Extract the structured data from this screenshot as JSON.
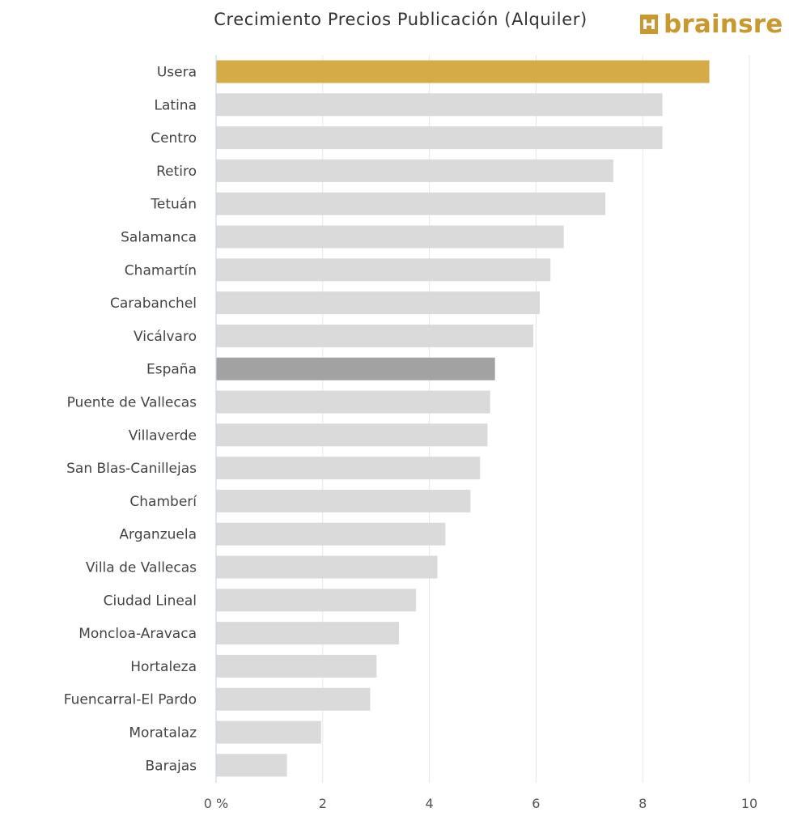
{
  "header": {
    "title": "Crecimiento Precios Publicación (Alquiler)",
    "logo_text": "brainsre",
    "logo_icon": "brainsre-logo-icon"
  },
  "colors": {
    "highlight": "#d4ab46",
    "reference": "#a2a2a2",
    "default": "#dadada",
    "grid": "#e6e6e6",
    "axis": "#c8d6e6",
    "brand": "#c9982e"
  },
  "chart_data": {
    "type": "bar",
    "orientation": "horizontal",
    "title": "Crecimiento Precios Publicación (Alquiler)",
    "xlabel": "",
    "ylabel": "",
    "xlim": [
      0,
      10
    ],
    "xticks": [
      0,
      2,
      4,
      6,
      8,
      10
    ],
    "xtick_labels": [
      "0 %",
      "2",
      "4",
      "6",
      "8",
      "10"
    ],
    "grid": true,
    "legend": "none",
    "categories": [
      "Usera",
      "Latina",
      "Centro",
      "Retiro",
      "Tetuán",
      "Salamanca",
      "Chamartín",
      "Carabanchel",
      "Vicálvaro",
      "España",
      "Puente de Vallecas",
      "Villaverde",
      "San Blas-Canillejas",
      "Chamberí",
      "Arganzuela",
      "Villa de Vallecas",
      "Ciudad Lineal",
      "Moncloa-Aravaca",
      "Hortaleza",
      "Fuencarral-El Pardo",
      "Moratalaz",
      "Barajas"
    ],
    "values": [
      9.25,
      8.37,
      8.37,
      7.45,
      7.3,
      6.52,
      6.27,
      6.07,
      5.95,
      5.23,
      5.14,
      5.09,
      4.95,
      4.77,
      4.3,
      4.15,
      3.75,
      3.43,
      3.01,
      2.89,
      1.97,
      1.33
    ],
    "highlight": {
      "Usera": "highlight",
      "España": "reference"
    }
  }
}
